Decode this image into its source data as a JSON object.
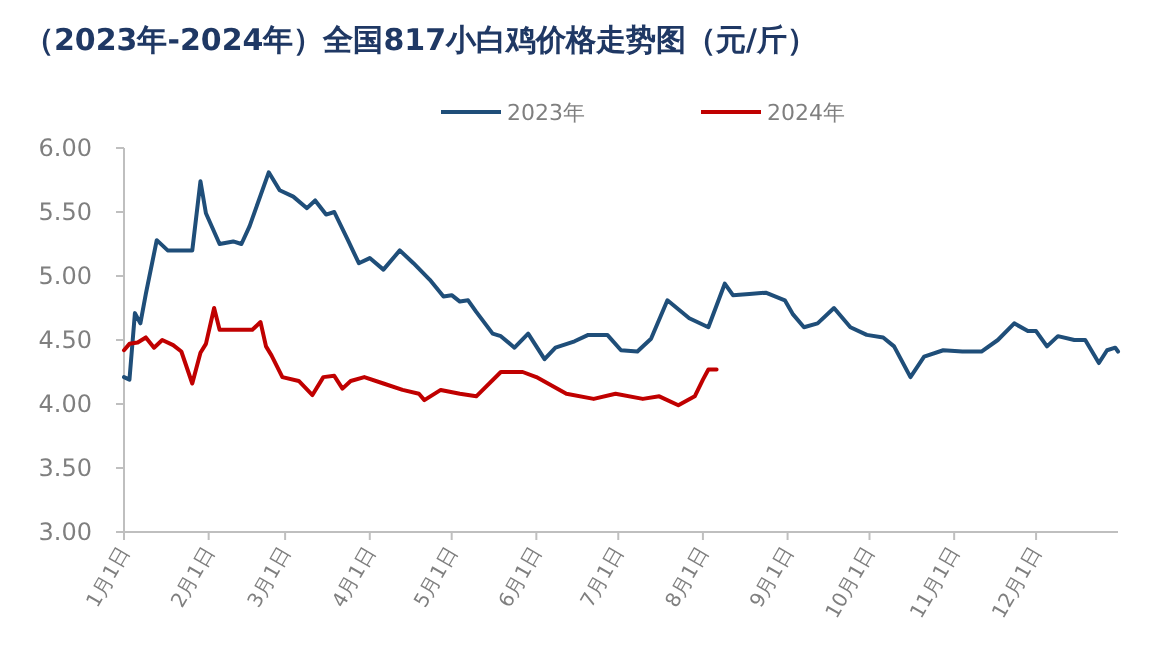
{
  "chart_data": {
    "type": "line",
    "title": "（2023年-2024年）全国817小白鸡价格走势图（元/斤）",
    "legend": "top",
    "grid": false,
    "xlim": [
      "--01-01",
      "--12-31"
    ],
    "xticks": [
      {
        "value": "--01-01",
        "label": "1月1日"
      },
      {
        "value": "--02-01",
        "label": "2月1日"
      },
      {
        "value": "--03-01",
        "label": "3月1日"
      },
      {
        "value": "--04-01",
        "label": "4月1日"
      },
      {
        "value": "--05-01",
        "label": "5月1日"
      },
      {
        "value": "--06-01",
        "label": "6月1日"
      },
      {
        "value": "--07-01",
        "label": "7月1日"
      },
      {
        "value": "--08-01",
        "label": "8月1日"
      },
      {
        "value": "--09-01",
        "label": "9月1日"
      },
      {
        "value": "--10-01",
        "label": "10月1日"
      },
      {
        "value": "--11-01",
        "label": "11月1日"
      },
      {
        "value": "--12-01",
        "label": "12月1日"
      }
    ],
    "ylim": [
      3,
      6
    ],
    "yticks": [
      {
        "value": 3,
        "label": "3.00"
      },
      {
        "value": 3.5,
        "label": "3.50"
      },
      {
        "value": 4,
        "label": "4.00"
      },
      {
        "value": 4.5,
        "label": "4.50"
      },
      {
        "value": 5,
        "label": "5.00"
      },
      {
        "value": 5.5,
        "label": "5.50"
      },
      {
        "value": 6,
        "label": "6.00"
      }
    ],
    "series": [
      {
        "name": "2023年",
        "color": "#1f4e79",
        "x": [
          "--01-01",
          "--01-03",
          "--01-05",
          "--01-07",
          "--01-09",
          "--01-13",
          "--01-17",
          "--01-26",
          "--01-29",
          "--01-31",
          "--02-05",
          "--02-10",
          "--02-13",
          "--02-16",
          "--02-23",
          "--02-27",
          "--03-04",
          "--03-09",
          "--03-12",
          "--03-16",
          "--03-19",
          "--03-24",
          "--03-28",
          "--04-01",
          "--04-06",
          "--04-12",
          "--04-17",
          "--04-23",
          "--04-28",
          "--05-01",
          "--05-04",
          "--05-07",
          "--05-10",
          "--05-16",
          "--05-19",
          "--05-24",
          "--05-29",
          "--06-04",
          "--06-08",
          "--06-15",
          "--06-20",
          "--06-27",
          "--07-02",
          "--07-08",
          "--07-13",
          "--07-19",
          "--07-27",
          "--08-03",
          "--08-09",
          "--08-12",
          "--08-18",
          "--08-24",
          "--08-31",
          "--09-03",
          "--09-07",
          "--09-12",
          "--09-18",
          "--09-24",
          "--09-30",
          "--10-06",
          "--10-10",
          "--10-16",
          "--10-21",
          "--10-28",
          "--11-04",
          "--11-11",
          "--11-17",
          "--11-23",
          "--11-28",
          "--12-01",
          "--12-05",
          "--12-09",
          "--12-15",
          "--12-19",
          "--12-24",
          "--12-27",
          "--12-30",
          "--12-31"
        ],
        "values": [
          4.21,
          4.19,
          4.71,
          4.63,
          4.86,
          5.28,
          5.2,
          5.2,
          5.74,
          5.49,
          5.25,
          5.27,
          5.25,
          5.39,
          5.81,
          5.67,
          5.62,
          5.53,
          5.59,
          5.48,
          5.5,
          5.28,
          5.1,
          5.14,
          5.05,
          5.2,
          5.1,
          4.97,
          4.84,
          4.85,
          4.8,
          4.81,
          4.72,
          4.55,
          4.53,
          4.44,
          4.55,
          4.35,
          4.44,
          4.49,
          4.54,
          4.54,
          4.42,
          4.41,
          4.51,
          4.81,
          4.67,
          4.6,
          4.94,
          4.85,
          4.86,
          4.87,
          4.81,
          4.7,
          4.6,
          4.63,
          4.75,
          4.6,
          4.54,
          4.52,
          4.45,
          4.21,
          4.37,
          4.42,
          4.41,
          4.41,
          4.5,
          4.63,
          4.57,
          4.57,
          4.45,
          4.53,
          4.5,
          4.5,
          4.32,
          4.42,
          4.44,
          4.41
        ]
      },
      {
        "name": "2024年",
        "color": "#c00000",
        "x": [
          "--01-01",
          "--01-03",
          "--01-06",
          "--01-09",
          "--01-12",
          "--01-15",
          "--01-19",
          "--01-22",
          "--01-26",
          "--01-29",
          "--01-31",
          "--02-03",
          "--02-05",
          "--02-17",
          "--02-20",
          "--02-22",
          "--02-24",
          "--02-28",
          "--03-06",
          "--03-11",
          "--03-15",
          "--03-19",
          "--03-22",
          "--03-25",
          "--03-30",
          "--04-06",
          "--04-13",
          "--04-19",
          "--04-21",
          "--04-27",
          "--05-04",
          "--05-10",
          "--05-19",
          "--05-27",
          "--06-01",
          "--06-12",
          "--06-22",
          "--06-30",
          "--07-10",
          "--07-16",
          "--07-23",
          "--07-29",
          "--08-01",
          "--08-03",
          "--08-06"
        ],
        "values": [
          4.42,
          4.47,
          4.48,
          4.52,
          4.44,
          4.5,
          4.46,
          4.41,
          4.16,
          4.4,
          4.47,
          4.75,
          4.58,
          4.58,
          4.64,
          4.45,
          4.38,
          4.21,
          4.18,
          4.07,
          4.21,
          4.22,
          4.12,
          4.18,
          4.21,
          4.16,
          4.11,
          4.08,
          4.03,
          4.11,
          4.08,
          4.06,
          4.25,
          4.25,
          4.21,
          4.08,
          4.04,
          4.08,
          4.04,
          4.06,
          3.99,
          4.06,
          4.19,
          4.27,
          4.27
        ]
      }
    ]
  }
}
